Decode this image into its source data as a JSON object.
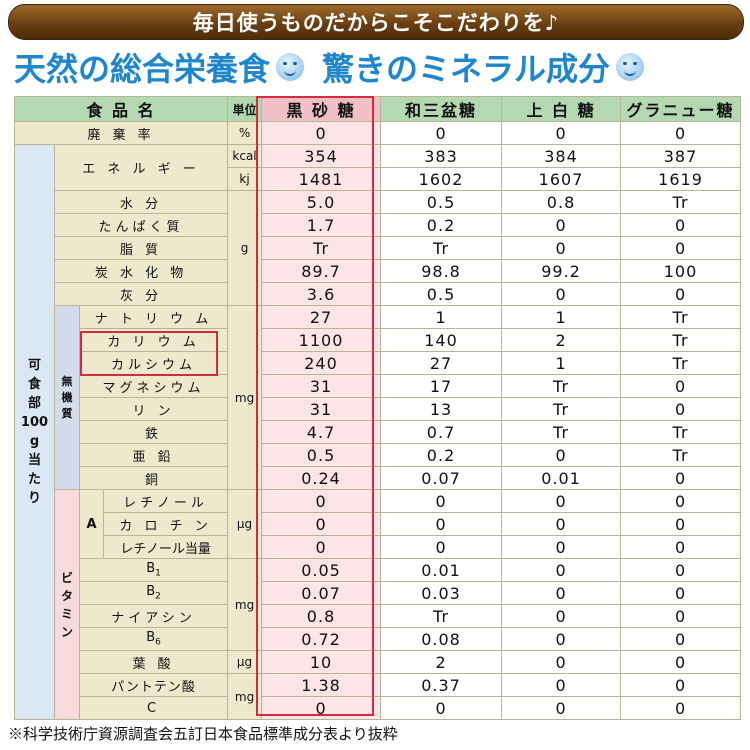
{
  "banner": "毎日使うものだからこそこだわりを♪",
  "headline": {
    "left": "天然の総合栄養食",
    "right": "驚きのミネラル成分",
    "icon": "smiley-icon"
  },
  "table": {
    "headers": [
      "食 品 名",
      "単位",
      "黒 砂 糖",
      "和三盆糖",
      "上 白 糖",
      "グラニュー糖"
    ],
    "waste": {
      "label": "廃 棄 率",
      "unit": "%",
      "values": [
        "0",
        "0",
        "0",
        "0"
      ]
    },
    "main_group": [
      "可",
      "食",
      "部",
      "100",
      "g",
      "当",
      "た",
      "り"
    ],
    "mineral_group": [
      "無",
      "機",
      "質"
    ],
    "vitamin_group": [
      "ビ",
      "タ",
      "ミ",
      "ン"
    ],
    "vitamin_a_label": "A",
    "units": {
      "kcal": "kcal",
      "kj": "kj",
      "g": "g",
      "mg": "mg",
      "ug": "μg"
    },
    "energy": {
      "label": "エ ネ ル ギ ー",
      "kcal": [
        "354",
        "383",
        "384",
        "387"
      ],
      "kj": [
        "1481",
        "1602",
        "1607",
        "1619"
      ]
    },
    "basic": [
      {
        "label": "水 分",
        "values": [
          "5.0",
          "0.5",
          "0.8",
          "Tr"
        ]
      },
      {
        "label": "たんぱく質",
        "values": [
          "1.7",
          "0.2",
          "0",
          "0"
        ]
      },
      {
        "label": "脂 質",
        "values": [
          "Tr",
          "Tr",
          "0",
          "0"
        ]
      },
      {
        "label": "炭 水 化 物",
        "values": [
          "89.7",
          "98.8",
          "99.2",
          "100"
        ]
      },
      {
        "label": "灰 分",
        "values": [
          "3.6",
          "0.5",
          "0",
          "0"
        ]
      }
    ],
    "minerals": [
      {
        "label": "ナ ト リ ウ ム",
        "values": [
          "27",
          "1",
          "1",
          "Tr"
        ]
      },
      {
        "label": "カ リ ウ ム",
        "values": [
          "1100",
          "140",
          "2",
          "Tr"
        ]
      },
      {
        "label": "カルシウム",
        "values": [
          "240",
          "27",
          "1",
          "Tr"
        ]
      },
      {
        "label": "マグネシウム",
        "values": [
          "31",
          "17",
          "Tr",
          "0"
        ]
      },
      {
        "label": "リ ン",
        "values": [
          "31",
          "13",
          "Tr",
          "0"
        ]
      },
      {
        "label": "鉄",
        "values": [
          "4.7",
          "0.7",
          "Tr",
          "Tr"
        ]
      },
      {
        "label": "亜 鉛",
        "values": [
          "0.5",
          "0.2",
          "0",
          "Tr"
        ]
      },
      {
        "label": "銅",
        "values": [
          "0.24",
          "0.07",
          "0.01",
          "0"
        ]
      }
    ],
    "vitamin_a": [
      {
        "label": "レチノール",
        "values": [
          "0",
          "0",
          "0",
          "0"
        ]
      },
      {
        "label": "カ ロ チ ン",
        "values": [
          "0",
          "0",
          "0",
          "0"
        ]
      },
      {
        "label": "レチノール当量",
        "values": [
          "0",
          "0",
          "0",
          "0"
        ]
      }
    ],
    "vitamin_b": [
      {
        "label": "B1",
        "values": [
          "0.05",
          "0.01",
          "0",
          "0"
        ]
      },
      {
        "label": "B2",
        "values": [
          "0.07",
          "0.03",
          "0",
          "0"
        ]
      },
      {
        "label": "ナイアシン",
        "values": [
          "0.8",
          "Tr",
          "0",
          "0"
        ]
      },
      {
        "label": "B6",
        "values": [
          "0.72",
          "0.08",
          "0",
          "0"
        ]
      }
    ],
    "folate": {
      "label": "葉 酸",
      "values": [
        "10",
        "2",
        "0",
        "0"
      ]
    },
    "pantothenic": {
      "label": "パントテン酸",
      "values": [
        "1.38",
        "0.37",
        "0",
        "0"
      ]
    },
    "vitamin_c": {
      "label": "C",
      "values": [
        "0",
        "0",
        "0",
        "0"
      ]
    }
  },
  "footnote": "※科学技術庁資源調査会五訂日本食品標準成分表より抜粋",
  "colors": {
    "highlight": "#d42b3d",
    "header": "#b3d8b2",
    "headline": "#1e85cf"
  }
}
